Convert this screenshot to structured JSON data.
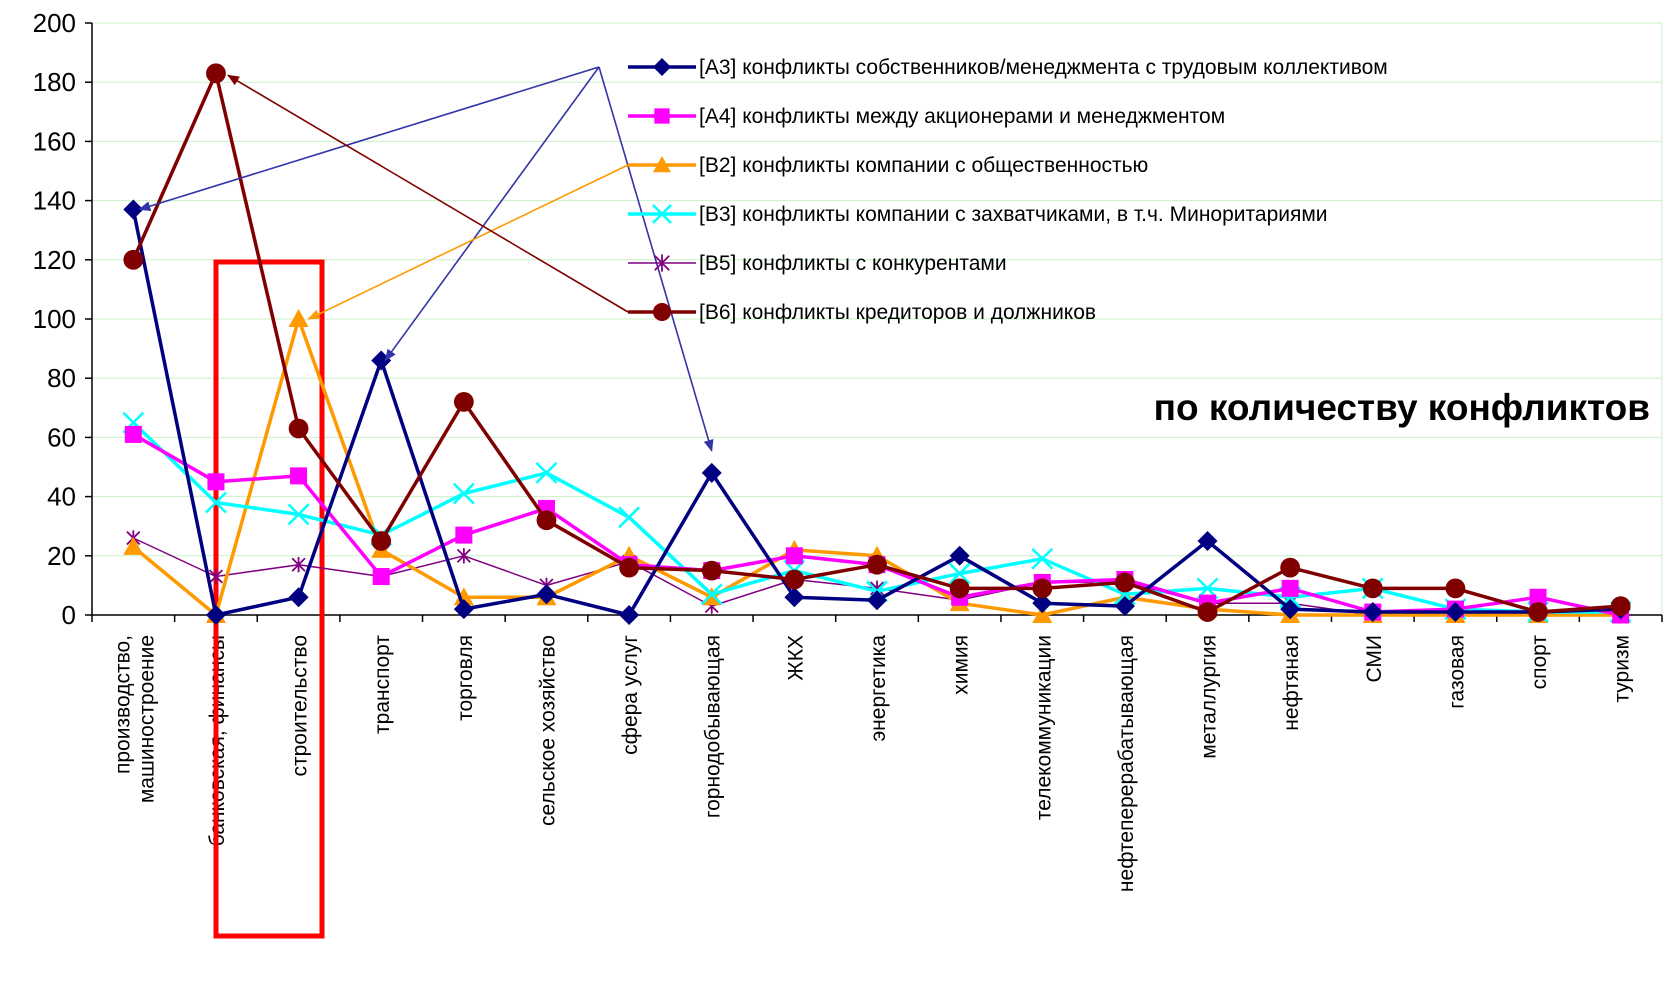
{
  "chart_data": {
    "type": "line",
    "title": "",
    "xlabel": "",
    "ylabel": "",
    "ylim": [
      0,
      200
    ],
    "yticks": [
      0,
      20,
      40,
      60,
      80,
      100,
      120,
      140,
      160,
      180,
      200
    ],
    "grid": true,
    "legend_position": "top-right",
    "categories": [
      [
        "производство,",
        "машиностроение"
      ],
      [
        "банковская, финансы"
      ],
      [
        "строительство"
      ],
      [
        "транспорт"
      ],
      [
        "торговля"
      ],
      [
        "сельское хозяйство"
      ],
      [
        "сфера услуг"
      ],
      [
        "горнодобывающая"
      ],
      [
        "ЖКХ"
      ],
      [
        "энергетика"
      ],
      [
        "химия"
      ],
      [
        "телекоммуникации"
      ],
      [
        "нефтеперерабатывающая"
      ],
      [
        "металлургия"
      ],
      [
        "нефтяная"
      ],
      [
        "СМИ"
      ],
      [
        "газовая"
      ],
      [
        "спорт"
      ],
      [
        "туризм"
      ]
    ],
    "series": [
      {
        "name": "[A3] конфликты собственников/менеджмента с трудовым коллективом",
        "color": "#000080",
        "marker": "diamond",
        "values": [
          137,
          0,
          6,
          86,
          2,
          7,
          0,
          48,
          6,
          5,
          20,
          4,
          3,
          25,
          2,
          1,
          1,
          1,
          2
        ]
      },
      {
        "name": "[A4] конфликты между акционерами и менеджментом",
        "color": "#FF00FF",
        "marker": "square",
        "values": [
          61,
          45,
          47,
          13,
          27,
          36,
          17,
          15,
          20,
          17,
          6,
          11,
          12,
          4,
          9,
          1,
          2,
          6,
          0
        ]
      },
      {
        "name": "[B2] конфликты компании с общественностью",
        "color": "#FF9900",
        "marker": "triangle",
        "values": [
          23,
          0,
          100,
          22,
          6,
          6,
          20,
          6,
          22,
          20,
          4,
          0,
          6,
          2,
          0,
          0,
          0,
          0,
          0
        ]
      },
      {
        "name": "[B3] конфликты компании с захватчиками, в т.ч. Миноритариями",
        "color": "#00FFFF",
        "marker": "x",
        "values": [
          65,
          38,
          34,
          27,
          41,
          48,
          33,
          7,
          15,
          8,
          14,
          19,
          7,
          9,
          6,
          9,
          2,
          1,
          1
        ]
      },
      {
        "name": "[B5] конфликты с конкурентами",
        "color": "#800080",
        "marker": "star",
        "values": [
          26,
          13,
          17,
          13,
          20,
          10,
          18,
          3,
          12,
          9,
          5,
          11,
          11,
          4,
          4,
          0,
          0,
          0,
          0
        ]
      },
      {
        "name": "[B6] конфликты кредиторов и должников",
        "color": "#800000",
        "marker": "circle",
        "values": [
          120,
          183,
          63,
          25,
          72,
          32,
          16,
          15,
          12,
          17,
          9,
          9,
          11,
          1,
          16,
          9,
          9,
          1,
          3
        ]
      }
    ],
    "annotation": "по количеству конфликтов"
  }
}
